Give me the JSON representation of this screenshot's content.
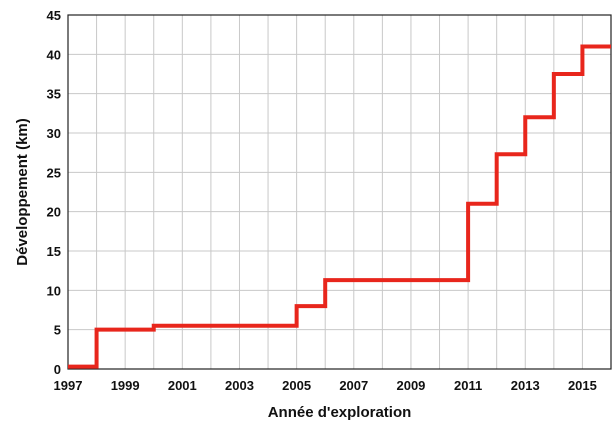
{
  "chart_data": {
    "type": "line",
    "step": "post",
    "title": "",
    "xlabel": "Année d'exploration",
    "ylabel": "Développement (km)",
    "xlim": [
      1997,
      2016
    ],
    "ylim": [
      0,
      45
    ],
    "x_ticks": [
      1997,
      1999,
      2001,
      2003,
      2005,
      2007,
      2009,
      2011,
      2013,
      2015
    ],
    "y_ticks": [
      0,
      5,
      10,
      15,
      20,
      25,
      30,
      35,
      40,
      45
    ],
    "grid": true,
    "legend": "none",
    "series": [
      {
        "color": "#e8261c",
        "x": [
          1997,
          1998,
          2000,
          2005,
          2006,
          2011,
          2012,
          2013,
          2014,
          2015,
          2016
        ],
        "y": [
          0.3,
          5.0,
          5.5,
          8.0,
          11.3,
          21.0,
          27.3,
          32.0,
          37.5,
          41.0,
          41.0
        ]
      }
    ]
  }
}
